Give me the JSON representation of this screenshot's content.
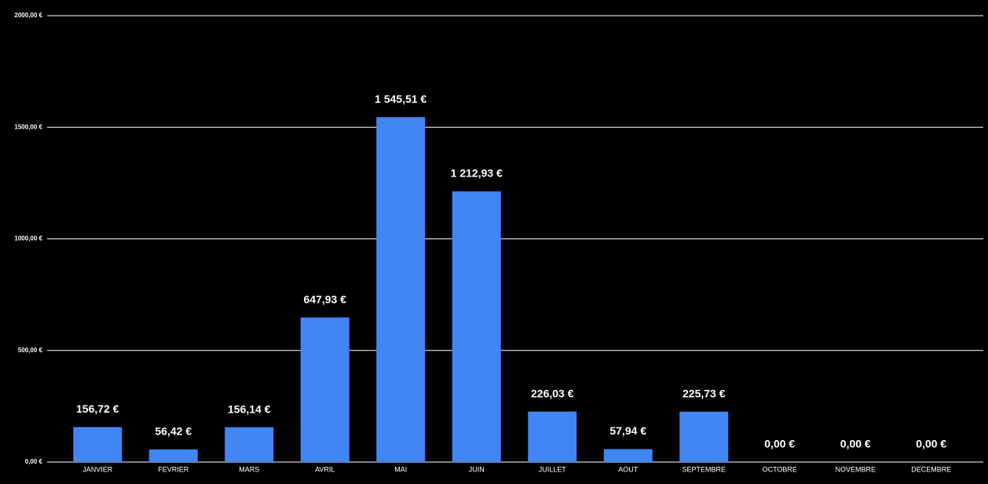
{
  "chart_data": {
    "type": "bar",
    "categories": [
      "JANVIER",
      "FEVRIER",
      "MARS",
      "AVRIL",
      "MAI",
      "JUIN",
      "JUILLET",
      "AOUT",
      "SEPTEMBRE",
      "OCTOBRE",
      "NOVEMBRE",
      "DECEMBRE"
    ],
    "values": [
      156.72,
      56.42,
      156.14,
      647.93,
      1545.51,
      1212.93,
      226.03,
      57.94,
      225.73,
      0,
      0,
      0
    ],
    "value_labels": [
      "156,72 €",
      "56,42 €",
      "156,14 €",
      "647,93 €",
      "1 545,51 €",
      "1 212,93 €",
      "226,03 €",
      "57,94 €",
      "225,73 €",
      "0,00 €",
      "0,00 €",
      "0,00 €"
    ],
    "color": "#4285f4",
    "ylim": [
      0,
      2000
    ],
    "yticks": [
      {
        "value": 0,
        "label": "0,00 €"
      },
      {
        "value": 500,
        "label": "500,00 €"
      },
      {
        "value": 1000,
        "label": "1000,00 €"
      },
      {
        "value": 1500,
        "label": "1500,00 €"
      },
      {
        "value": 2000,
        "label": "2000,00 €"
      }
    ],
    "grid": true
  }
}
